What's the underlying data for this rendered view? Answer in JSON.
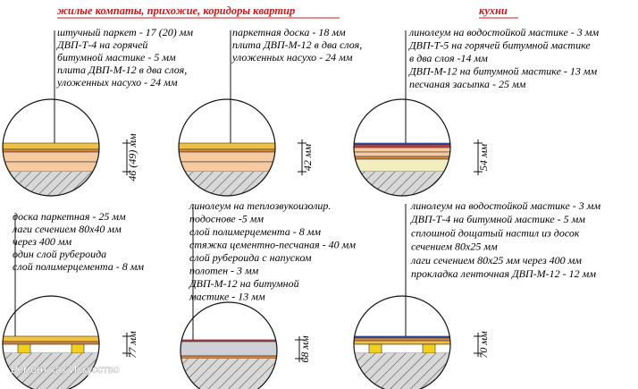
{
  "header": {
    "left": "жилые компаты, прихожие, коридоры квартир",
    "right": "кухни"
  },
  "panels": [
    {
      "labels": [
        "штучный паркет - 17 (20) мм",
        "ДВП-Т-4 на горячей",
        "битумной мастике - 5 мм",
        "плита ДВП-М-12 в два слоя,",
        "уложенных насухо - 24 мм"
      ],
      "dimension": "46 (49) мм"
    },
    {
      "labels": [
        "паркетная доска - 18 мм",
        "плита ДВП-М-12 в два слоя,",
        "уложенных насухо - 24 мм"
      ],
      "dimension": "42 мм"
    },
    {
      "labels": [
        "линолеум на водостойкой мастике - 3 мм",
        "ДВП-Т-5 на горячей битумной мастике",
        "в два слоя -14 мм",
        "ДВП-М-12 на битумной мастике - 13 мм",
        "песчаная засыпка - 25 мм"
      ],
      "dimension": "54 мм"
    },
    {
      "labels": [
        "доска паркетная - 25 мм",
        "лаги сечением 80х40 мм",
        "через 400 мм",
        "один слой рубероида",
        "слой полимерцемента - 8 мм"
      ],
      "dimension": "77 мм"
    },
    {
      "labels": [
        "линолеум на теплозвукоизолир.",
        "подоснове -5 мм",
        "слой полимерцемента - 8 мм",
        "стяжка цементно-песчаная - 40 мм",
        "слой рубероида с напуском",
        "полотен - 3 мм",
        "ДВП-М-12 на битумной",
        "мастике - 13 мм"
      ],
      "dimension": "68 мм"
    },
    {
      "labels": [
        "линолеум на водостойкой мастике - 3 мм",
        "ДВП-Т-4 на битумной мастике - 5 мм",
        "сплошной дощатый настил из досок",
        "сечением 80х25 мм",
        "лаги сечением 80х25 мм через 400 мм",
        "прокладка ленточная ДВП-М-12 - 12 мм"
      ],
      "dimension": "70 мм"
    }
  ],
  "watermark": "Ремонт как Искусство"
}
